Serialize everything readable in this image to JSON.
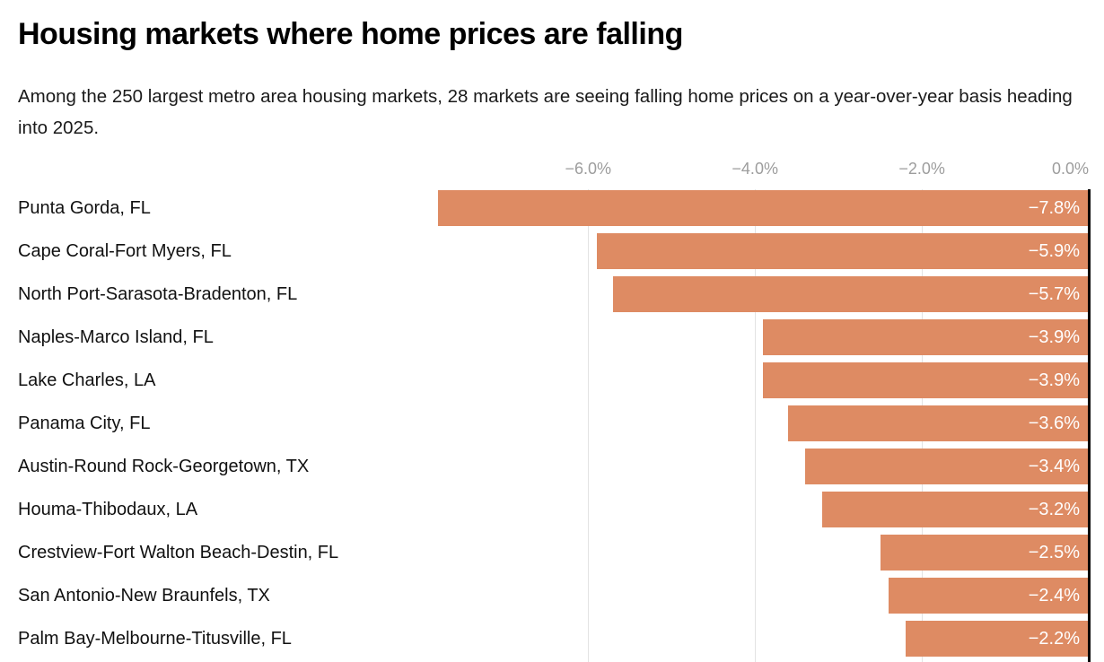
{
  "header": {
    "title": "Housing markets where home prices are falling",
    "subtitle": "Among the 250 largest metro area housing markets, 28 markets are seeing falling home prices on a year-over-year basis heading into 2025."
  },
  "chart_data": {
    "type": "bar",
    "orientation": "horizontal",
    "title": "Housing markets where home prices are falling",
    "subtitle": "Among the 250 largest metro area housing markets, 28 markets are seeing falling home prices on a year-over-year basis heading into 2025.",
    "xlabel": "",
    "ylabel": "",
    "xlim": [
      -8,
      0
    ],
    "grid": true,
    "legend": false,
    "categories": [
      "Punta Gorda, FL",
      "Cape Coral-Fort Myers, FL",
      "North Port-Sarasota-Bradenton, FL",
      "Naples-Marco Island, FL",
      "Lake Charles, LA",
      "Panama City, FL",
      "Austin-Round Rock-Georgetown, TX",
      "Houma-Thibodaux, LA",
      "Crestview-Fort Walton Beach-Destin, FL",
      "San Antonio-New Braunfels, TX",
      "Palm Bay-Melbourne-Titusville, FL"
    ],
    "values": [
      -7.8,
      -5.9,
      -5.7,
      -3.9,
      -3.9,
      -3.6,
      -3.4,
      -3.2,
      -2.5,
      -2.4,
      -2.2
    ],
    "value_labels": [
      "−7.8%",
      "−5.9%",
      "−5.7%",
      "−3.9%",
      "−3.9%",
      "−3.6%",
      "−3.4%",
      "−3.2%",
      "−2.5%",
      "−2.4%",
      "−2.2%"
    ],
    "x_ticks": [
      {
        "value": -6,
        "label": "−6.0%"
      },
      {
        "value": -4,
        "label": "−4.0%"
      },
      {
        "value": -2,
        "label": "−2.0%"
      },
      {
        "value": 0,
        "label": "0.0%"
      }
    ]
  },
  "colors": {
    "bar_fill": "#DE8B63",
    "value_text": "#ffffff",
    "category_text": "#111111",
    "tick_text": "#9d9d9d",
    "gridline": "#e3e3e3",
    "zero_line": "#000000",
    "title_text": "#000000",
    "subtitle_text": "#1a1a1a"
  }
}
